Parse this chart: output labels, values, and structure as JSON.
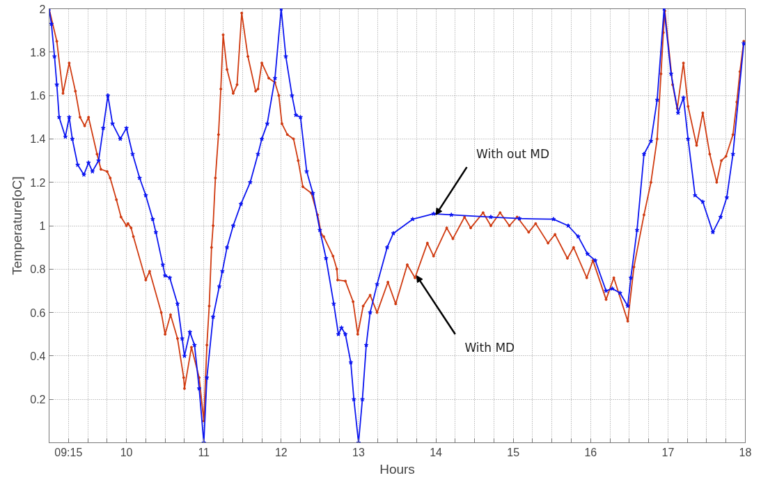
{
  "chart_data": {
    "type": "line",
    "xlabel": "Hours",
    "ylabel": "Temperature[oC]",
    "xlim": [
      9,
      18
    ],
    "ylim": [
      0,
      2
    ],
    "xticks": [
      {
        "value": 9.25,
        "label": "09:15"
      },
      {
        "value": 9.5,
        "label": null
      },
      {
        "value": 9.75,
        "label": null
      },
      10,
      {
        "value": 10.25,
        "label": null
      },
      {
        "value": 10.5,
        "label": null
      },
      {
        "value": 10.75,
        "label": null
      },
      11,
      {
        "value": 11.25,
        "label": null
      },
      {
        "value": 11.5,
        "label": null
      },
      {
        "value": 11.75,
        "label": null
      },
      12,
      {
        "value": 12.25,
        "label": null
      },
      {
        "value": 12.5,
        "label": null
      },
      {
        "value": 12.75,
        "label": null
      },
      13,
      {
        "value": 13.25,
        "label": null
      },
      {
        "value": 13.5,
        "label": null
      },
      {
        "value": 13.75,
        "label": null
      },
      14,
      {
        "value": 14.25,
        "label": null
      },
      {
        "value": 14.5,
        "label": null
      },
      {
        "value": 14.75,
        "label": null
      },
      15,
      {
        "value": 15.25,
        "label": null
      },
      {
        "value": 15.5,
        "label": null
      },
      {
        "value": 15.75,
        "label": null
      },
      16,
      {
        "value": 16.25,
        "label": null
      },
      {
        "value": 16.5,
        "label": null
      },
      {
        "value": 16.75,
        "label": null
      },
      17,
      {
        "value": 17.25,
        "label": null
      },
      {
        "value": 17.5,
        "label": null
      },
      {
        "value": 17.75,
        "label": null
      },
      18
    ],
    "yticks": [
      {
        "value": 0,
        "label": null
      },
      0.2,
      0.4,
      0.6,
      0.8,
      1,
      1.2,
      1.4,
      1.6,
      1.8,
      2
    ],
    "grid": true,
    "line_style": "solid",
    "annotations": [
      {
        "text": "With out MD",
        "x": 14,
        "y": 1.05
      },
      {
        "text": "With MD",
        "x": 13.75,
        "y": 0.77
      }
    ],
    "series": [
      {
        "color": "#d03a10",
        "marker": "circle",
        "x": [
          9.0,
          9.1,
          9.18,
          9.26,
          9.34,
          9.4,
          9.46,
          9.51,
          9.62,
          9.67,
          9.75,
          9.79,
          9.87,
          9.93,
          10.0,
          10.02,
          10.06,
          10.09,
          10.25,
          10.3,
          10.45,
          10.5,
          10.57,
          10.66,
          10.74,
          10.75,
          10.84,
          10.94,
          11.0,
          11.04,
          11.07,
          11.1,
          11.12,
          11.15,
          11.19,
          11.22,
          11.25,
          11.3,
          11.38,
          11.43,
          11.49,
          11.57,
          11.67,
          11.7,
          11.75,
          11.84,
          11.92,
          11.97,
          12.01,
          12.08,
          12.16,
          12.22,
          12.28,
          12.39,
          12.47,
          12.52,
          12.55,
          12.67,
          12.72,
          12.73,
          12.83,
          12.93,
          12.99,
          13.06,
          13.15,
          13.24,
          13.38,
          13.48,
          13.63,
          13.73,
          13.89,
          13.97,
          14.14,
          14.22,
          14.37,
          14.45,
          14.61,
          14.71,
          14.83,
          14.95,
          15.05,
          15.2,
          15.29,
          15.45,
          15.54,
          15.7,
          15.78,
          15.95,
          16.03,
          16.2,
          16.3,
          16.48,
          16.56,
          16.69,
          16.78,
          16.86,
          16.91,
          16.94,
          16.96,
          17.06,
          17.12,
          17.2,
          17.26,
          17.37,
          17.45,
          17.54,
          17.63,
          17.69,
          17.75,
          17.84,
          17.89,
          17.93,
          17.98
        ],
        "values": [
          2.0,
          1.85,
          1.61,
          1.75,
          1.62,
          1.5,
          1.46,
          1.5,
          1.33,
          1.26,
          1.25,
          1.22,
          1.12,
          1.04,
          1.0,
          1.01,
          0.99,
          0.95,
          0.75,
          0.79,
          0.6,
          0.5,
          0.59,
          0.48,
          0.3,
          0.25,
          0.44,
          0.3,
          0.1,
          0.45,
          0.63,
          0.9,
          1.0,
          1.22,
          1.42,
          1.63,
          1.88,
          1.72,
          1.61,
          1.65,
          1.98,
          1.78,
          1.62,
          1.63,
          1.75,
          1.68,
          1.66,
          1.6,
          1.47,
          1.42,
          1.4,
          1.3,
          1.18,
          1.15,
          1.05,
          0.96,
          0.95,
          0.86,
          0.8,
          0.75,
          0.745,
          0.65,
          0.5,
          0.63,
          0.68,
          0.6,
          0.74,
          0.64,
          0.82,
          0.76,
          0.92,
          0.86,
          0.99,
          0.94,
          1.04,
          0.99,
          1.06,
          1.0,
          1.06,
          1.0,
          1.04,
          0.97,
          1.01,
          0.92,
          0.96,
          0.85,
          0.9,
          0.76,
          0.84,
          0.66,
          0.76,
          0.56,
          0.81,
          1.05,
          1.2,
          1.4,
          1.7,
          1.89,
          1.99,
          1.65,
          1.54,
          1.75,
          1.55,
          1.37,
          1.52,
          1.33,
          1.2,
          1.3,
          1.32,
          1.42,
          1.57,
          1.71,
          1.85
        ]
      },
      {
        "color": "#0a14f0",
        "marker": "star",
        "x": [
          9.0,
          9.03,
          9.07,
          9.1,
          9.13,
          9.21,
          9.26,
          9.3,
          9.37,
          9.45,
          9.51,
          9.56,
          9.64,
          9.7,
          9.76,
          9.82,
          9.92,
          10.0,
          10.08,
          10.17,
          10.25,
          10.34,
          10.38,
          10.47,
          10.5,
          10.56,
          10.66,
          10.72,
          10.75,
          10.82,
          10.88,
          10.94,
          11.0,
          11.04,
          11.12,
          11.2,
          11.24,
          11.3,
          11.38,
          11.48,
          11.6,
          11.7,
          11.75,
          11.82,
          11.92,
          12.0,
          12.06,
          12.14,
          12.19,
          12.25,
          12.33,
          12.41,
          12.5,
          12.58,
          12.68,
          12.74,
          12.78,
          12.83,
          12.9,
          12.94,
          13.0,
          13.05,
          13.1,
          13.15,
          13.24,
          13.37,
          13.45,
          13.7,
          13.97,
          14.2,
          14.71,
          15.08,
          15.52,
          15.71,
          15.84,
          15.96,
          16.06,
          16.2,
          16.28,
          16.38,
          16.48,
          16.52,
          16.6,
          16.69,
          16.78,
          16.86,
          16.95,
          17.04,
          17.13,
          17.2,
          17.26,
          17.35,
          17.45,
          17.58,
          17.68,
          17.76,
          17.84,
          17.98
        ],
        "values": [
          2.0,
          1.93,
          1.78,
          1.65,
          1.5,
          1.41,
          1.5,
          1.4,
          1.28,
          1.235,
          1.29,
          1.25,
          1.3,
          1.45,
          1.6,
          1.47,
          1.4,
          1.45,
          1.33,
          1.22,
          1.14,
          1.03,
          0.97,
          0.82,
          0.77,
          0.76,
          0.64,
          0.48,
          0.4,
          0.51,
          0.45,
          0.25,
          0.0,
          0.3,
          0.58,
          0.72,
          0.79,
          0.9,
          1.0,
          1.1,
          1.2,
          1.33,
          1.4,
          1.47,
          1.68,
          2.0,
          1.78,
          1.6,
          1.51,
          1.5,
          1.25,
          1.15,
          0.98,
          0.85,
          0.64,
          0.5,
          0.53,
          0.5,
          0.37,
          0.2,
          0.0,
          0.2,
          0.45,
          0.6,
          0.73,
          0.9,
          0.965,
          1.03,
          1.055,
          1.05,
          1.04,
          1.033,
          1.03,
          1.0,
          0.95,
          0.87,
          0.84,
          0.7,
          0.71,
          0.69,
          0.63,
          0.76,
          0.98,
          1.33,
          1.39,
          1.58,
          2.0,
          1.7,
          1.52,
          1.59,
          1.4,
          1.14,
          1.11,
          0.97,
          1.04,
          1.13,
          1.33,
          1.84
        ]
      }
    ]
  }
}
